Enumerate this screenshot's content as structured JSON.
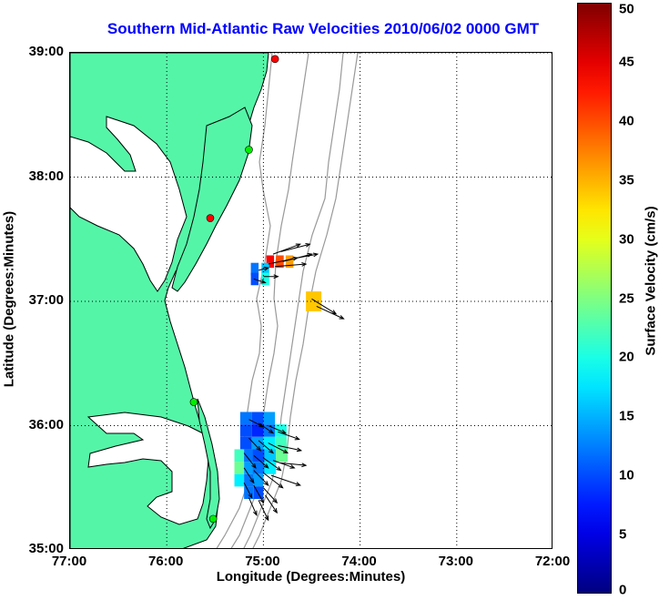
{
  "title": "Southern Mid-Atlantic Raw Velocities 2010/06/02 0000 GMT",
  "xlabel": "Longitude (Degrees:Minutes)",
  "ylabel": "Latitude (Degrees:Minutes)",
  "colorbar_label": "Surface Velocity (cm/s)",
  "colors": {
    "land": "#55f5a8",
    "title": "#0000ff",
    "contour": "#999999",
    "grid": "#000000"
  },
  "chart_data": {
    "type": "map",
    "xlim": [
      -77.0,
      -72.0
    ],
    "ylim": [
      35.0,
      39.0
    ],
    "x_ticks": [
      {
        "value": -77.0,
        "label": "77:00"
      },
      {
        "value": -76.0,
        "label": "76:00"
      },
      {
        "value": -75.0,
        "label": "75:00"
      },
      {
        "value": -74.0,
        "label": "74:00"
      },
      {
        "value": -73.0,
        "label": "73:00"
      },
      {
        "value": -72.0,
        "label": "72:00"
      }
    ],
    "y_ticks": [
      {
        "value": 39.0,
        "label": "39:00"
      },
      {
        "value": 38.0,
        "label": "38:00"
      },
      {
        "value": 37.0,
        "label": "37:00"
      },
      {
        "value": 36.0,
        "label": "36:00"
      },
      {
        "value": 35.0,
        "label": "35:00"
      }
    ],
    "colorbar": {
      "min": 0,
      "max": 50,
      "ticks": [
        0,
        5,
        10,
        15,
        20,
        25,
        30,
        35,
        40,
        45,
        50
      ]
    },
    "grid": "dotted",
    "stations": [
      {
        "lon": -74.88,
        "lat": 38.95,
        "color": "#ff0000"
      },
      {
        "lon": -75.15,
        "lat": 38.22,
        "color": "#00ee00"
      },
      {
        "lon": -75.55,
        "lat": 37.67,
        "color": "#ff0000"
      },
      {
        "lon": -75.72,
        "lat": 36.19,
        "color": "#00ee00"
      },
      {
        "lon": -75.52,
        "lat": 35.25,
        "color": "#00ee00"
      }
    ],
    "velocity_patches": [
      {
        "lon": -74.93,
        "lat": 37.32,
        "w": 0.08,
        "h": 0.1,
        "speed": 44
      },
      {
        "lon": -74.83,
        "lat": 37.32,
        "w": 0.08,
        "h": 0.1,
        "speed": 40
      },
      {
        "lon": -74.73,
        "lat": 37.32,
        "w": 0.08,
        "h": 0.1,
        "speed": 36
      },
      {
        "lon": -75.09,
        "lat": 37.26,
        "w": 0.08,
        "h": 0.1,
        "speed": 12
      },
      {
        "lon": -74.98,
        "lat": 37.26,
        "w": 0.08,
        "h": 0.1,
        "speed": 16
      },
      {
        "lon": -75.09,
        "lat": 37.18,
        "w": 0.08,
        "h": 0.1,
        "speed": 10
      },
      {
        "lon": -74.98,
        "lat": 37.18,
        "w": 0.08,
        "h": 0.1,
        "speed": 20
      },
      {
        "lon": -74.48,
        "lat": 37.0,
        "w": 0.16,
        "h": 0.16,
        "speed": 34
      },
      {
        "lon": -75.18,
        "lat": 36.06,
        "w": 0.12,
        "h": 0.1,
        "speed": 12
      },
      {
        "lon": -75.06,
        "lat": 36.06,
        "w": 0.12,
        "h": 0.1,
        "speed": 10
      },
      {
        "lon": -74.94,
        "lat": 36.06,
        "w": 0.12,
        "h": 0.1,
        "speed": 14
      },
      {
        "lon": -74.82,
        "lat": 35.96,
        "w": 0.12,
        "h": 0.1,
        "speed": 20
      },
      {
        "lon": -75.18,
        "lat": 35.96,
        "w": 0.12,
        "h": 0.1,
        "speed": 10
      },
      {
        "lon": -75.06,
        "lat": 35.96,
        "w": 0.12,
        "h": 0.1,
        "speed": 8
      },
      {
        "lon": -74.94,
        "lat": 35.96,
        "w": 0.12,
        "h": 0.1,
        "speed": 12
      },
      {
        "lon": -75.18,
        "lat": 35.86,
        "w": 0.12,
        "h": 0.1,
        "speed": 10
      },
      {
        "lon": -75.06,
        "lat": 35.86,
        "w": 0.12,
        "h": 0.1,
        "speed": 14
      },
      {
        "lon": -74.94,
        "lat": 35.86,
        "w": 0.12,
        "h": 0.1,
        "speed": 18
      },
      {
        "lon": -74.82,
        "lat": 35.86,
        "w": 0.12,
        "h": 0.1,
        "speed": 22
      },
      {
        "lon": -75.25,
        "lat": 35.76,
        "w": 0.1,
        "h": 0.1,
        "speed": 22
      },
      {
        "lon": -75.15,
        "lat": 35.76,
        "w": 0.1,
        "h": 0.1,
        "speed": 12
      },
      {
        "lon": -75.05,
        "lat": 35.76,
        "w": 0.12,
        "h": 0.1,
        "speed": 10
      },
      {
        "lon": -74.93,
        "lat": 35.76,
        "w": 0.12,
        "h": 0.1,
        "speed": 16
      },
      {
        "lon": -74.81,
        "lat": 35.76,
        "w": 0.12,
        "h": 0.1,
        "speed": 24
      },
      {
        "lon": -75.25,
        "lat": 35.66,
        "w": 0.1,
        "h": 0.1,
        "speed": 24
      },
      {
        "lon": -75.15,
        "lat": 35.66,
        "w": 0.1,
        "h": 0.1,
        "speed": 14
      },
      {
        "lon": -75.05,
        "lat": 35.66,
        "w": 0.12,
        "h": 0.1,
        "speed": 12
      },
      {
        "lon": -74.93,
        "lat": 35.66,
        "w": 0.12,
        "h": 0.1,
        "speed": 18
      },
      {
        "lon": -75.25,
        "lat": 35.56,
        "w": 0.1,
        "h": 0.1,
        "speed": 18
      },
      {
        "lon": -75.15,
        "lat": 35.56,
        "w": 0.1,
        "h": 0.1,
        "speed": 12
      },
      {
        "lon": -75.05,
        "lat": 35.56,
        "w": 0.1,
        "h": 0.1,
        "speed": 14
      },
      {
        "lon": -75.15,
        "lat": 35.46,
        "w": 0.1,
        "h": 0.1,
        "speed": 12
      },
      {
        "lon": -75.05,
        "lat": 35.46,
        "w": 0.1,
        "h": 0.1,
        "speed": 10
      }
    ],
    "vectors": [
      {
        "lon": -74.95,
        "lat": 37.3,
        "u": 0.3,
        "v": 0.05
      },
      {
        "lon": -74.88,
        "lat": 37.28,
        "u": 0.32,
        "v": 0.02
      },
      {
        "lon": -74.8,
        "lat": 37.32,
        "u": 0.3,
        "v": 0.06
      },
      {
        "lon": -74.72,
        "lat": 37.34,
        "u": 0.28,
        "v": 0.04
      },
      {
        "lon": -74.9,
        "lat": 37.38,
        "u": 0.28,
        "v": 0.08
      },
      {
        "lon": -74.82,
        "lat": 37.4,
        "u": 0.3,
        "v": 0.06
      },
      {
        "lon": -75.05,
        "lat": 37.25,
        "u": 0.1,
        "v": 0.02
      },
      {
        "lon": -75.1,
        "lat": 37.18,
        "u": 0.12,
        "v": -0.03
      },
      {
        "lon": -75.0,
        "lat": 37.2,
        "u": 0.15,
        "v": 0.0
      },
      {
        "lon": -74.5,
        "lat": 37.02,
        "u": 0.25,
        "v": -0.12
      },
      {
        "lon": -74.45,
        "lat": 36.96,
        "u": 0.28,
        "v": -0.1
      },
      {
        "lon": -75.15,
        "lat": 36.05,
        "u": 0.15,
        "v": -0.06
      },
      {
        "lon": -75.05,
        "lat": 36.02,
        "u": 0.15,
        "v": -0.08
      },
      {
        "lon": -74.95,
        "lat": 36.0,
        "u": 0.18,
        "v": -0.06
      },
      {
        "lon": -74.85,
        "lat": 35.95,
        "u": 0.22,
        "v": -0.06
      },
      {
        "lon": -75.15,
        "lat": 35.9,
        "u": 0.12,
        "v": -0.1
      },
      {
        "lon": -75.05,
        "lat": 35.88,
        "u": 0.15,
        "v": -0.1
      },
      {
        "lon": -74.95,
        "lat": 35.86,
        "u": 0.2,
        "v": -0.08
      },
      {
        "lon": -74.85,
        "lat": 35.84,
        "u": 0.24,
        "v": -0.04
      },
      {
        "lon": -75.2,
        "lat": 35.78,
        "u": 0.12,
        "v": -0.12
      },
      {
        "lon": -75.1,
        "lat": 35.76,
        "u": 0.15,
        "v": -0.1
      },
      {
        "lon": -75.0,
        "lat": 35.74,
        "u": 0.18,
        "v": -0.1
      },
      {
        "lon": -74.9,
        "lat": 35.72,
        "u": 0.22,
        "v": -0.06
      },
      {
        "lon": -74.82,
        "lat": 35.7,
        "u": 0.26,
        "v": -0.02
      },
      {
        "lon": -75.2,
        "lat": 35.66,
        "u": 0.1,
        "v": -0.12
      },
      {
        "lon": -75.1,
        "lat": 35.64,
        "u": 0.15,
        "v": -0.12
      },
      {
        "lon": -75.0,
        "lat": 35.62,
        "u": 0.2,
        "v": -0.12
      },
      {
        "lon": -74.92,
        "lat": 35.6,
        "u": 0.3,
        "v": -0.08
      },
      {
        "lon": -75.2,
        "lat": 35.54,
        "u": 0.08,
        "v": -0.12
      },
      {
        "lon": -75.1,
        "lat": 35.52,
        "u": 0.1,
        "v": -0.14
      },
      {
        "lon": -75.0,
        "lat": 35.5,
        "u": 0.14,
        "v": -0.12
      },
      {
        "lon": -75.15,
        "lat": 35.42,
        "u": 0.08,
        "v": -0.14
      },
      {
        "lon": -75.05,
        "lat": 35.4,
        "u": 0.1,
        "v": -0.16
      },
      {
        "lon": -74.98,
        "lat": 35.44,
        "u": 0.12,
        "v": -0.14
      }
    ]
  }
}
